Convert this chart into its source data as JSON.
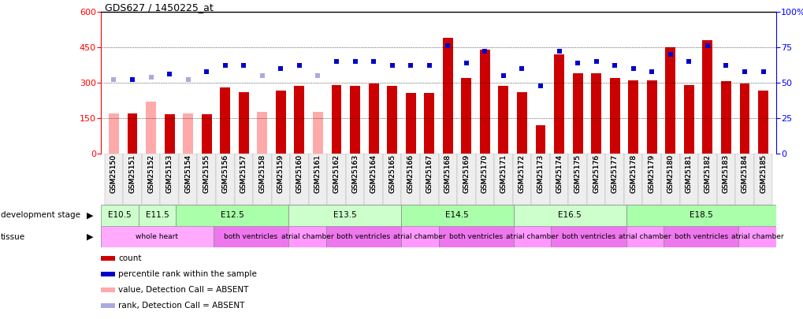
{
  "title": "GDS627 / 1450225_at",
  "samples": [
    "GSM25150",
    "GSM25151",
    "GSM25152",
    "GSM25153",
    "GSM25154",
    "GSM25155",
    "GSM25156",
    "GSM25157",
    "GSM25158",
    "GSM25159",
    "GSM25160",
    "GSM25161",
    "GSM25162",
    "GSM25163",
    "GSM25164",
    "GSM25165",
    "GSM25166",
    "GSM25167",
    "GSM25168",
    "GSM25169",
    "GSM25170",
    "GSM25171",
    "GSM25172",
    "GSM25173",
    "GSM25174",
    "GSM25175",
    "GSM25176",
    "GSM25177",
    "GSM25178",
    "GSM25179",
    "GSM25180",
    "GSM25181",
    "GSM25182",
    "GSM25183",
    "GSM25184",
    "GSM25185"
  ],
  "counts": [
    170,
    170,
    220,
    165,
    170,
    165,
    280,
    260,
    175,
    265,
    285,
    175,
    290,
    285,
    295,
    285,
    255,
    255,
    490,
    320,
    440,
    285,
    260,
    120,
    420,
    340,
    340,
    320,
    310,
    310,
    450,
    290,
    480,
    305,
    295,
    265
  ],
  "absent_mask": [
    true,
    false,
    true,
    false,
    true,
    false,
    false,
    false,
    true,
    false,
    false,
    true,
    false,
    false,
    false,
    false,
    false,
    false,
    false,
    false,
    false,
    false,
    false,
    false,
    false,
    false,
    false,
    false,
    false,
    false,
    false,
    false,
    false,
    false,
    false,
    false
  ],
  "percentile_ranks": [
    52,
    52,
    54,
    56,
    52,
    58,
    62,
    62,
    55,
    60,
    62,
    55,
    65,
    65,
    65,
    62,
    62,
    62,
    76,
    64,
    72,
    55,
    60,
    48,
    72,
    64,
    65,
    62,
    60,
    58,
    70,
    65,
    76,
    62,
    58,
    58
  ],
  "absent_rank_mask": [
    true,
    false,
    true,
    false,
    true,
    false,
    false,
    false,
    true,
    false,
    false,
    true,
    false,
    false,
    false,
    false,
    false,
    false,
    false,
    false,
    false,
    false,
    false,
    false,
    false,
    false,
    false,
    false,
    false,
    false,
    false,
    false,
    false,
    false,
    false,
    false
  ],
  "ylim_left": [
    0,
    600
  ],
  "ylim_right": [
    0,
    100
  ],
  "yticks_left": [
    0,
    150,
    300,
    450,
    600
  ],
  "yticks_right": [
    0,
    25,
    50,
    75,
    100
  ],
  "bar_color_present": "#cc0000",
  "bar_color_absent": "#ffaaaa",
  "dot_color_present": "#0000cc",
  "dot_color_absent": "#aaaadd",
  "grid_values": [
    150,
    300,
    450
  ],
  "development_stages": [
    {
      "label": "E10.5",
      "start": 0,
      "end": 1,
      "color": "#ccffcc"
    },
    {
      "label": "E11.5",
      "start": 2,
      "end": 3,
      "color": "#ccffcc"
    },
    {
      "label": "E12.5",
      "start": 4,
      "end": 9,
      "color": "#aaffaa"
    },
    {
      "label": "E13.5",
      "start": 10,
      "end": 15,
      "color": "#ccffcc"
    },
    {
      "label": "E14.5",
      "start": 16,
      "end": 21,
      "color": "#aaffaa"
    },
    {
      "label": "E16.5",
      "start": 22,
      "end": 27,
      "color": "#ccffcc"
    },
    {
      "label": "E18.5",
      "start": 28,
      "end": 35,
      "color": "#aaffaa"
    }
  ],
  "tissues": [
    {
      "label": "whole heart",
      "start": 0,
      "end": 5,
      "color": "#ffaaff"
    },
    {
      "label": "both ventricles",
      "start": 6,
      "end": 9,
      "color": "#ee77ee"
    },
    {
      "label": "atrial chamber",
      "start": 10,
      "end": 11,
      "color": "#ff99ff"
    },
    {
      "label": "both ventricles",
      "start": 12,
      "end": 15,
      "color": "#ee77ee"
    },
    {
      "label": "atrial chamber",
      "start": 16,
      "end": 17,
      "color": "#ff99ff"
    },
    {
      "label": "both ventricles",
      "start": 18,
      "end": 21,
      "color": "#ee77ee"
    },
    {
      "label": "atrial chamber",
      "start": 22,
      "end": 23,
      "color": "#ff99ff"
    },
    {
      "label": "both ventricles",
      "start": 24,
      "end": 27,
      "color": "#ee77ee"
    },
    {
      "label": "atrial chamber",
      "start": 28,
      "end": 29,
      "color": "#ff99ff"
    },
    {
      "label": "both ventricles",
      "start": 30,
      "end": 33,
      "color": "#ee77ee"
    },
    {
      "label": "atrial chamber",
      "start": 34,
      "end": 35,
      "color": "#ff99ff"
    }
  ],
  "legend_items": [
    {
      "label": "count",
      "color": "#cc0000"
    },
    {
      "label": "percentile rank within the sample",
      "color": "#0000cc"
    },
    {
      "label": "value, Detection Call = ABSENT",
      "color": "#ffaaaa"
    },
    {
      "label": "rank, Detection Call = ABSENT",
      "color": "#aaaadd"
    }
  ],
  "dev_stage_label": "development stage",
  "tissue_label": "tissue",
  "bar_width": 0.55,
  "marker_size": 5
}
